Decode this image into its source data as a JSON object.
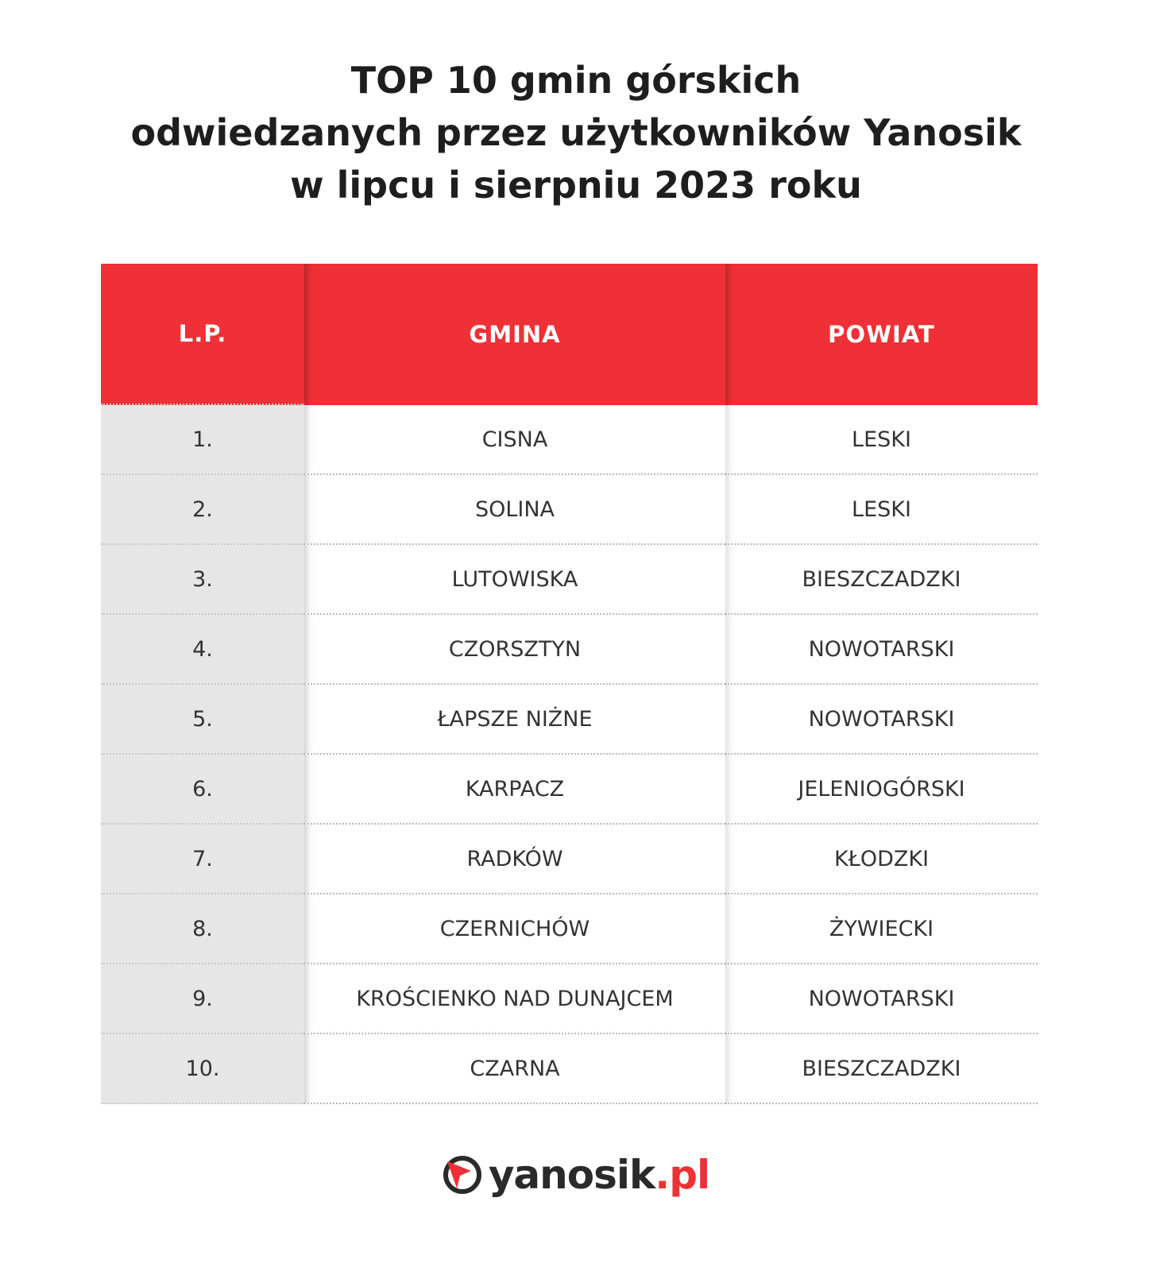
{
  "header": {
    "title_lines": [
      "TOP 10 gmin górskich",
      "odwiedzanych przez użytkowników Yanosik",
      "w lipcu i sierpniu 2023 roku"
    ]
  },
  "table": {
    "columns": [
      "L.P.",
      "GMINA",
      "POWIAT"
    ],
    "rows": [
      [
        "1.",
        "CISNA",
        "LESKI"
      ],
      [
        "2.",
        "SOLINA",
        "LESKI"
      ],
      [
        "3.",
        "LUTOWISKA",
        "BIESZCZADZKI"
      ],
      [
        "4.",
        "CZORSZTYN",
        "NOWOTARSKI"
      ],
      [
        "5.",
        "ŁAPSZE NIŻNE",
        "NOWOTARSKI"
      ],
      [
        "6.",
        "KARPACZ",
        "JELENIOGÓRSKI"
      ],
      [
        "7.",
        "RADKÓW",
        "KŁODZKI"
      ],
      [
        "8.",
        "CZERNICHÓW",
        "ŻYWIECKI"
      ],
      [
        "9.",
        "KROŚCIENKO NAD DUNAJCEM",
        "NOWOTARSKI"
      ],
      [
        "10.",
        "CZARNA",
        "BIESZCZADZKI"
      ]
    ]
  },
  "footer": {
    "logo_main": "yanosik",
    "logo_suffix": ".pl"
  }
}
